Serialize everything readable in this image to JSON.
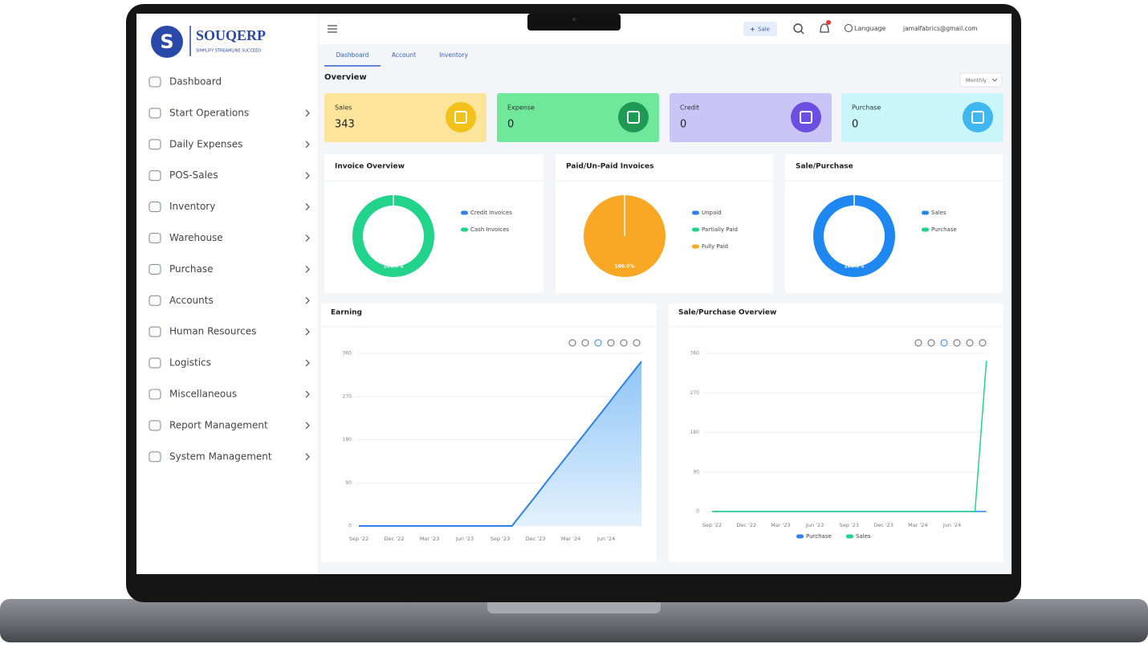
{
  "brand": {
    "logo_letter": "S",
    "name": "SOUQERP",
    "tagline": "SIMPLIFY STREAMLINE SUCCEED"
  },
  "topbar": {
    "button": "Sale",
    "language": "Language",
    "email": "jamalfabrics@gmail.com"
  },
  "tabs": [
    "Dashboard",
    "Account",
    "Inventory"
  ],
  "sidebar": [
    "Dashboard",
    "Start Operations",
    "Daily Expenses",
    "POS-Sales",
    "Inventory",
    "Warehouse",
    "Purchase",
    "Accounts",
    "Human Resources",
    "Logistics",
    "Miscellaneous",
    "Report Management",
    "System Management"
  ],
  "overview": {
    "title": "Overview",
    "period": "Monthly"
  },
  "stats": [
    {
      "label": "Sales",
      "value": 343,
      "color": "#fde49b",
      "icon_color": "#f2c21b"
    },
    {
      "label": "Expense",
      "value": 0,
      "color": "#6fe89c",
      "icon_color": "#1f9a55"
    },
    {
      "label": "Credit",
      "value": 0,
      "color": "#cbc5f7",
      "icon_color": "#6c4fe0"
    },
    {
      "label": "Purchase",
      "value": 0,
      "color": "#c8f6fb",
      "icon_color": "#3fb7f0"
    }
  ],
  "donuts": [
    {
      "type": "donut",
      "title": "Invoice Overview",
      "series": [
        {
          "name": "Credit Invoices",
          "color": "#2f80ed",
          "value": 0
        },
        {
          "name": "Cash Invoices",
          "color": "#22d38b",
          "value": 100,
          "value_label": "100.0%"
        }
      ]
    },
    {
      "type": "pie",
      "title": "Paid/Un-Paid Invoices",
      "series": [
        {
          "name": "Unpaid",
          "color": "#2f80ed",
          "value": 0
        },
        {
          "name": "Partially Paid",
          "color": "#22d38b",
          "value": 0
        },
        {
          "name": "Fully Paid",
          "color": "#f9a825",
          "value": 100,
          "value_label": "100.0%"
        }
      ]
    },
    {
      "type": "donut",
      "title": "Sale/Purchase",
      "series": [
        {
          "name": "Sales",
          "color": "#1e88f0",
          "value": 100,
          "value_label": "100.0%"
        },
        {
          "name": "Purchase",
          "color": "#22d38b",
          "value": 0
        }
      ]
    }
  ],
  "charts": [
    {
      "type": "area",
      "title": "Earning",
      "color": "#2f80ed",
      "categories": [
        "Sep '22",
        null,
        null,
        "Dec '22",
        null,
        null,
        "Mar '23",
        null,
        null,
        "Jun '23",
        null,
        null,
        "Sep '23",
        null,
        null,
        "Dec '23",
        null,
        null,
        "Mar '24",
        null,
        null,
        "Jun '24",
        null,
        null,
        null
      ],
      "values": [
        0,
        0,
        0,
        0,
        0,
        0,
        0,
        0,
        0,
        0,
        0,
        0,
        0,
        0,
        31,
        62,
        94,
        125,
        156,
        187,
        218,
        249,
        281,
        312,
        343
      ],
      "ylim": [
        0,
        360
      ],
      "yticks": [
        0,
        90,
        180,
        270,
        360
      ],
      "grid": true
    },
    {
      "type": "line",
      "title": "Sale/Purchase Overview",
      "categories": [
        "Sep '22",
        null,
        null,
        "Dec '22",
        null,
        null,
        "Mar '23",
        null,
        null,
        "Jun '23",
        null,
        null,
        "Sep '23",
        null,
        null,
        "Dec '23",
        null,
        null,
        "Mar '24",
        null,
        null,
        "Jun '24",
        null,
        null,
        null
      ],
      "series": [
        {
          "name": "Purchase",
          "color": "#2f80ed",
          "values": [
            0,
            0,
            0,
            0,
            0,
            0,
            0,
            0,
            0,
            0,
            0,
            0,
            0,
            0,
            0,
            0,
            0,
            0,
            0,
            0,
            0,
            0,
            0,
            0,
            0
          ]
        },
        {
          "name": "Sales",
          "color": "#22d38b",
          "values": [
            0,
            0,
            0,
            0,
            0,
            0,
            0,
            0,
            0,
            0,
            0,
            0,
            0,
            0,
            0,
            0,
            0,
            0,
            0,
            0,
            0,
            0,
            0,
            0,
            343
          ]
        }
      ],
      "ylim": [
        0,
        360
      ],
      "yticks": [
        0,
        90,
        180,
        270,
        360
      ],
      "grid": true,
      "legend": "bottom"
    }
  ]
}
